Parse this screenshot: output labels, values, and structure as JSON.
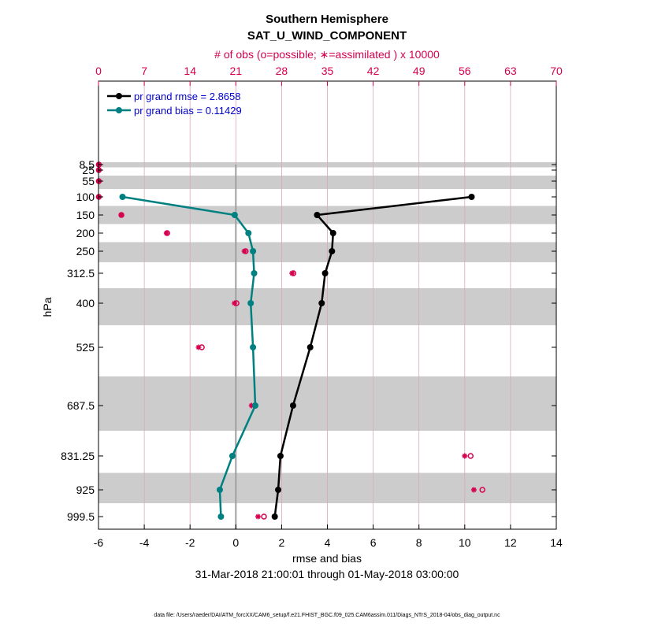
{
  "chart_data": {
    "type": "line",
    "title": "Southern Hemisphere",
    "subtitle": "SAT_U_WIND_COMPONENT",
    "top_axis_label": "# of obs (o=possible; ∗=assimilated ) x 10000",
    "xlabel": "rmse and bias",
    "ylabel": "hPa",
    "date_range": "31-Mar-2018 21:00:01 through 01-May-2018 03:00:00",
    "footer": "data file: /Users/raeder/DAI/ATM_forcXX/CAM6_setup/f.e21.FHIST_BGC.f09_025.CAM6assim.011/Diags_NTrS_2018-04/obs_diag_output.nc",
    "xlim": [
      -6,
      14
    ],
    "x_ticks": [
      "-6",
      "-4",
      "-2",
      "0",
      "2",
      "4",
      "6",
      "8",
      "10",
      "12",
      "14"
    ],
    "top_xlim": [
      0,
      70
    ],
    "top_ticks": [
      "0",
      "7",
      "14",
      "21",
      "28",
      "35",
      "42",
      "49",
      "56",
      "63",
      "70"
    ],
    "levels": [
      "8.5",
      "25",
      "55",
      "100",
      "150",
      "200",
      "250",
      "312.5",
      "400",
      "525",
      "687.5",
      "831.25",
      "925",
      "999.5"
    ],
    "level_values": [
      8.5,
      25,
      55,
      100,
      150,
      200,
      250,
      312.5,
      400,
      525,
      687.5,
      831.25,
      925,
      999.5
    ],
    "band_levels": [
      8.5,
      55,
      150,
      250,
      400,
      687.5,
      925
    ],
    "legend": {
      "rmse_label": "pr grand rmse = 2.8658",
      "bias_label": "pr grand bias = 0.11429"
    },
    "series": [
      {
        "name": "rmse",
        "color": "#000000",
        "points": [
          {
            "level": 100,
            "value": 10.3
          },
          {
            "level": 150,
            "value": 3.55
          },
          {
            "level": 200,
            "value": 4.25
          },
          {
            "level": 250,
            "value": 4.2
          },
          {
            "level": 312.5,
            "value": 3.9
          },
          {
            "level": 400,
            "value": 3.75
          },
          {
            "level": 525,
            "value": 3.25
          },
          {
            "level": 687.5,
            "value": 2.5
          },
          {
            "level": 831.25,
            "value": 1.95
          },
          {
            "level": 925,
            "value": 1.85
          },
          {
            "level": 999.5,
            "value": 1.7
          }
        ]
      },
      {
        "name": "bias",
        "color": "#008080",
        "points": [
          {
            "level": 100,
            "value": -4.95
          },
          {
            "level": 150,
            "value": -0.05
          },
          {
            "level": 200,
            "value": 0.55
          },
          {
            "level": 250,
            "value": 0.75
          },
          {
            "level": 312.5,
            "value": 0.8
          },
          {
            "level": 400,
            "value": 0.65
          },
          {
            "level": 525,
            "value": 0.75
          },
          {
            "level": 687.5,
            "value": 0.85
          },
          {
            "level": 831.25,
            "value": -0.15
          },
          {
            "level": 925,
            "value": -0.7
          },
          {
            "level": 999.5,
            "value": -0.65
          }
        ]
      }
    ],
    "obs_counts": [
      {
        "level": 8.5,
        "possible": 0.05,
        "assimilated": 0.05
      },
      {
        "level": 25,
        "possible": 0.05,
        "assimilated": 0.05
      },
      {
        "level": 55,
        "possible": 0.05,
        "assimilated": 0.05
      },
      {
        "level": 100,
        "possible": 0.05,
        "assimilated": 0.05
      },
      {
        "level": 150,
        "possible": 3.5,
        "assimilated": 3.5
      },
      {
        "level": 200,
        "possible": 10.5,
        "assimilated": 10.4
      },
      {
        "level": 250,
        "possible": 22.5,
        "assimilated": 22.3
      },
      {
        "level": 312.5,
        "possible": 29.8,
        "assimilated": 29.6
      },
      {
        "level": 400,
        "possible": 21.1,
        "assimilated": 20.8
      },
      {
        "level": 525,
        "possible": 15.8,
        "assimilated": 15.3
      },
      {
        "level": 687.5,
        "possible": 23.9,
        "assimilated": 23.4
      },
      {
        "level": 831.25,
        "possible": 56.9,
        "assimilated": 56.0
      },
      {
        "level": 925,
        "possible": 58.7,
        "assimilated": 57.4
      },
      {
        "level": 999.5,
        "possible": 25.3,
        "assimilated": 24.4
      }
    ],
    "colors": {
      "count_axis": "#d6004f",
      "legend_text": "#0000cc",
      "band": "#cccccc",
      "grid": "#d8a8b8",
      "zero_line": "#a0a0a0"
    }
  }
}
